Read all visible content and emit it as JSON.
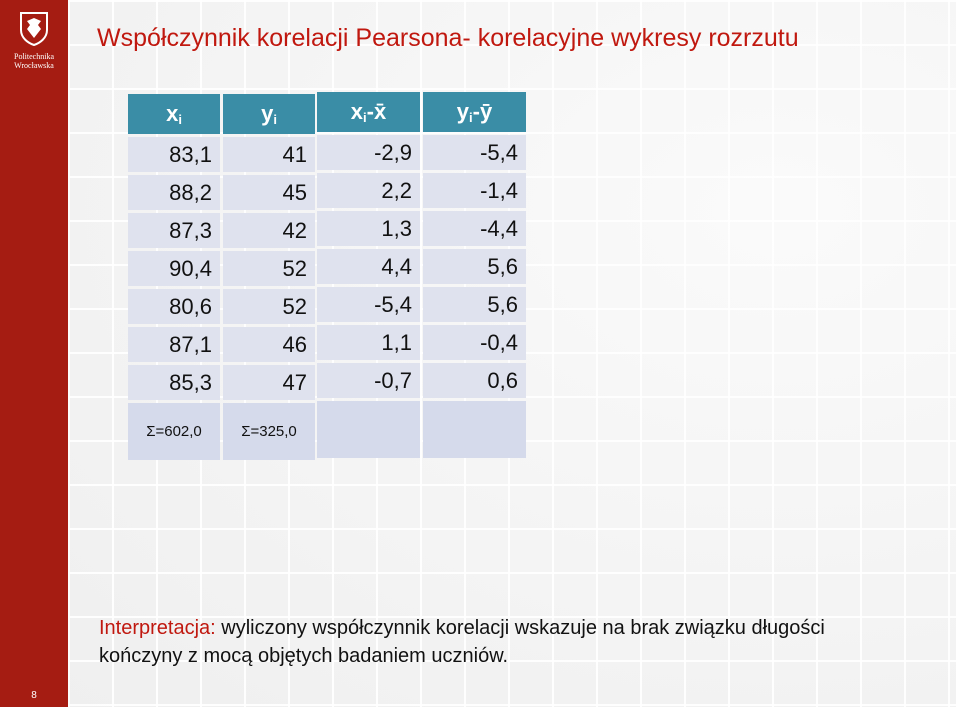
{
  "branding": {
    "logo_line1": "Politechnika",
    "logo_line2": "Wrocławska",
    "page_number": "8",
    "colors": {
      "sidebar": "#a51c12",
      "title": "#c0180f",
      "header": "#3a8da6",
      "cell": "#dfe2ee"
    }
  },
  "slide": {
    "title": "Współczynnik korelacji Pearsona- korelacyjne wykresy rozrzutu"
  },
  "table_left": {
    "headers": [
      {
        "main": "x",
        "sub": "i"
      },
      {
        "main": "y",
        "sub": "i"
      }
    ],
    "rows": [
      [
        "83,1",
        "41"
      ],
      [
        "88,2",
        "45"
      ],
      [
        "87,3",
        "42"
      ],
      [
        "90,4",
        "52"
      ],
      [
        "80,6",
        "52"
      ],
      [
        "87,1",
        "46"
      ],
      [
        "85,3",
        "47"
      ]
    ],
    "sums": [
      "Σ=602,0",
      "Σ=325,0"
    ]
  },
  "table_right": {
    "headers": [
      {
        "main": "x",
        "sub": "i",
        "tail": "-x̄"
      },
      {
        "main": "y",
        "sub": "i",
        "tail": "-ȳ"
      }
    ],
    "rows": [
      [
        "-2,9",
        "-5,4"
      ],
      [
        "2,2",
        "-1,4"
      ],
      [
        "1,3",
        "-4,4"
      ],
      [
        "4,4",
        "5,6"
      ],
      [
        "-5,4",
        "5,6"
      ],
      [
        "1,1",
        "-0,4"
      ],
      [
        "-0,7",
        "0,6"
      ]
    ],
    "sums": [
      "",
      ""
    ]
  },
  "interpretation": {
    "label": "Interpretacja:",
    "text": " wyliczony współczynnik korelacji wskazuje na brak związku długości kończyny z mocą objętych badaniem uczniów."
  }
}
